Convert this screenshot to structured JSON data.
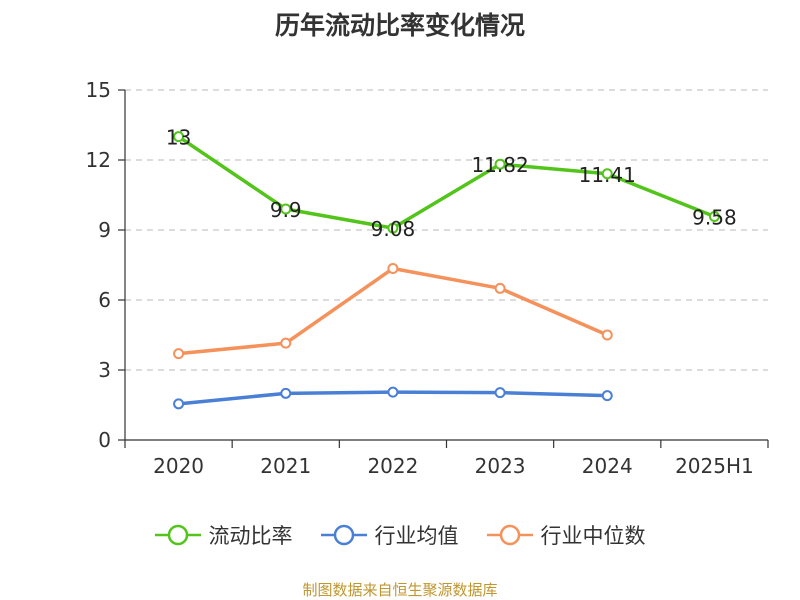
{
  "chart_data": {
    "type": "line",
    "title": "历年流动比率变化情况",
    "categories": [
      "2020",
      "2021",
      "2022",
      "2023",
      "2024",
      "2025H1"
    ],
    "ylim": [
      0,
      15
    ],
    "yticks": [
      0,
      3,
      6,
      9,
      12,
      15
    ],
    "grid": true,
    "legend_position": "bottom",
    "series": [
      {
        "name": "流动比率",
        "color": "#52c41a",
        "values": [
          13,
          9.9,
          9.08,
          11.82,
          11.41,
          9.58
        ],
        "labels": [
          "13",
          "9.9",
          "9.08",
          "11.82",
          "11.41",
          "9.58"
        ]
      },
      {
        "name": "行业均值",
        "color": "#4a7fd6",
        "values": [
          1.55,
          2.0,
          2.05,
          2.03,
          1.9,
          null
        ]
      },
      {
        "name": "行业中位数",
        "color": "#f5915a",
        "values": [
          3.7,
          4.15,
          7.35,
          6.5,
          4.5,
          null
        ]
      }
    ]
  },
  "source": "制图数据来自恒生聚源数据库"
}
